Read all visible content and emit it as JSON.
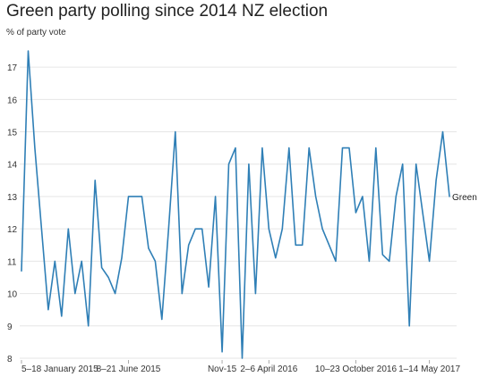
{
  "chart_data": {
    "type": "line",
    "title": "Green party polling since 2014 NZ election",
    "ylabel": "% of party vote",
    "xlabel": "",
    "ylim": [
      8,
      17.5
    ],
    "y_ticks": [
      8,
      9,
      10,
      11,
      12,
      13,
      14,
      15,
      16,
      17
    ],
    "x_ticks": [
      {
        "label": "5–18 January 2015",
        "index": 0
      },
      {
        "label": "8–21 June 2015",
        "index": 16
      },
      {
        "label": "Nov-15",
        "index": 30
      },
      {
        "label": "2–6 April 2016",
        "index": 37
      },
      {
        "label": "10–23 October 2016",
        "index": 50
      },
      {
        "label": "1–14 May 2017",
        "index": 61
      }
    ],
    "grid": true,
    "series": [
      {
        "name": "Green",
        "color": "#2f7fb6",
        "values": [
          10.7,
          17.5,
          14.5,
          12.0,
          9.5,
          11.0,
          9.3,
          12.0,
          10.0,
          11.0,
          9.0,
          13.5,
          10.8,
          10.5,
          10.0,
          11.1,
          13.0,
          13.0,
          13.0,
          11.4,
          11.0,
          9.2,
          12.0,
          15.0,
          10.0,
          11.5,
          12.0,
          12.0,
          10.2,
          13.0,
          8.2,
          14.0,
          14.5,
          8.0,
          14.0,
          10.0,
          14.5,
          12.0,
          11.1,
          12.0,
          14.5,
          11.5,
          11.5,
          14.5,
          13.0,
          12.0,
          11.5,
          11.0,
          14.5,
          14.5,
          12.5,
          13.0,
          11.0,
          14.5,
          11.2,
          11.0,
          13.0,
          14.0,
          9.0,
          14.0,
          12.5,
          11.0,
          13.5,
          15.0,
          13.0
        ]
      }
    ]
  }
}
